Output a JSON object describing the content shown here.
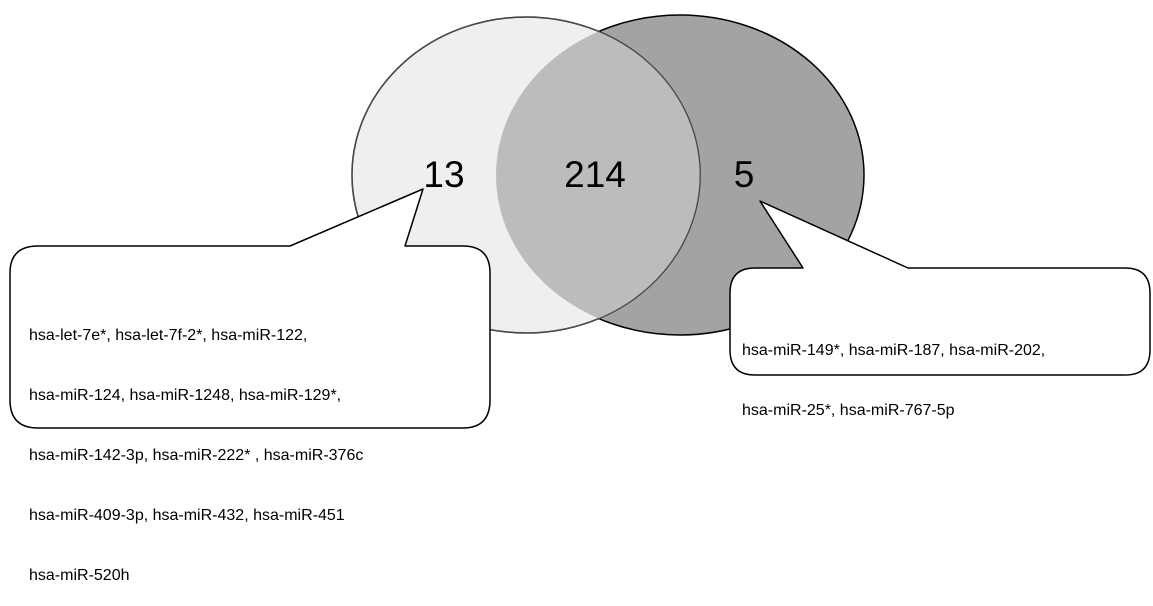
{
  "venn": {
    "left_only": {
      "count": "13",
      "fill": "#efefef"
    },
    "overlap": {
      "count": "214",
      "fill": "#bcbcbc"
    },
    "right_only": {
      "count": "5",
      "fill": "#a3a3a3"
    }
  },
  "callouts": {
    "left": {
      "lines": [
        "hsa-let-7e*, hsa-let-7f-2*, hsa-miR-122,",
        "hsa-miR-124, hsa-miR-1248, hsa-miR-129*,",
        "hsa-miR-142-3p, hsa-miR-222* , hsa-miR-376c",
        "hsa-miR-409-3p, hsa-miR-432, hsa-miR-451",
        "hsa-miR-520h"
      ]
    },
    "right": {
      "lines": [
        "hsa-miR-149*, hsa-miR-187, hsa-miR-202,",
        "hsa-miR-25*, hsa-miR-767-5p"
      ]
    }
  }
}
